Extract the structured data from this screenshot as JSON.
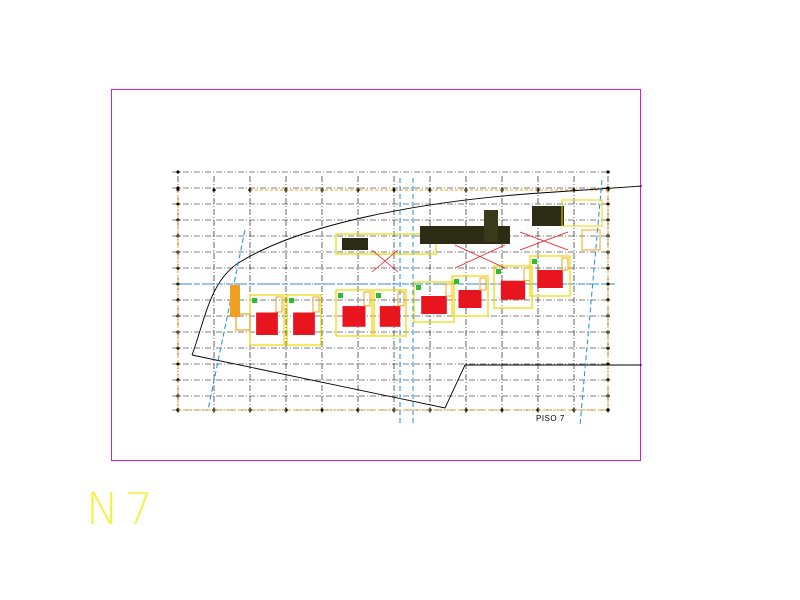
{
  "drawing": {
    "plan_label": "PISO 7",
    "level_code": "N7"
  },
  "colors": {
    "frame": "#d81ad8",
    "background": "#ffffff",
    "grid_line": "#000000",
    "wall_yellow": "#e8d800",
    "wall_orange": "#f0a020",
    "seating_red": "#e8141e",
    "accent_green": "#2ebd2e",
    "section_line_blue": "#1a8fe0",
    "level_code_text": "#f2f24a"
  }
}
